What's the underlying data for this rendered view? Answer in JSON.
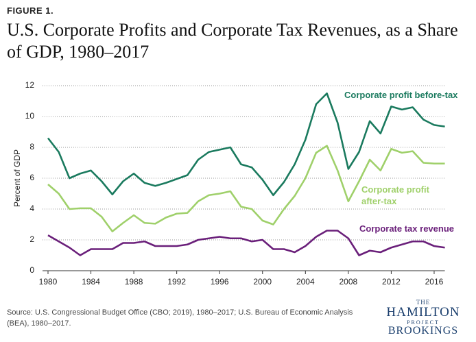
{
  "chart_data": {
    "type": "line",
    "figure_label": "FIGURE 1.",
    "title": "U.S. Corporate Profits and Corporate Tax Revenues, as a Share of GDP, 1980–2017",
    "y_label": "Percent of GDP",
    "source": "Source: U.S. Congressional Budget Office (CBO; 2019), 1980–2017; U.S. Bureau of Economic Analysis (BEA), 1980–2017.",
    "logo": [
      "THE",
      "HAMILTON",
      "PROJECT",
      "BROOKINGS"
    ],
    "x": [
      1980,
      1981,
      1982,
      1983,
      1984,
      1985,
      1986,
      1987,
      1988,
      1989,
      1990,
      1991,
      1992,
      1993,
      1994,
      1995,
      1996,
      1997,
      1998,
      1999,
      2000,
      2001,
      2002,
      2003,
      2004,
      2005,
      2006,
      2007,
      2008,
      2009,
      2010,
      2011,
      2012,
      2013,
      2014,
      2015,
      2016,
      2017
    ],
    "xlim": [
      1980,
      2017
    ],
    "xticks": [
      1980,
      1984,
      1988,
      1992,
      1996,
      2000,
      2004,
      2008,
      2012,
      2016
    ],
    "ylim": [
      0,
      12
    ],
    "yticks": [
      0,
      2,
      4,
      6,
      8,
      10,
      12
    ],
    "grid": true,
    "series": [
      {
        "name": "Corporate profit before-tax",
        "color": "#1a7a5e",
        "values": [
          8.6,
          7.7,
          6.0,
          6.3,
          6.5,
          5.8,
          4.95,
          5.8,
          6.3,
          5.7,
          5.5,
          5.7,
          5.95,
          6.2,
          7.2,
          7.7,
          7.85,
          8.0,
          6.9,
          6.7,
          5.9,
          4.9,
          5.75,
          6.9,
          8.5,
          10.8,
          11.5,
          9.6,
          6.6,
          7.7,
          9.7,
          8.9,
          10.65,
          10.45,
          10.6,
          9.8,
          9.45,
          9.35
        ]
      },
      {
        "name": "Corporate profit after-tax",
        "color": "#9fd06a",
        "values": [
          5.6,
          5.0,
          4.0,
          4.05,
          4.05,
          3.5,
          2.55,
          3.1,
          3.6,
          3.1,
          3.05,
          3.45,
          3.7,
          3.75,
          4.5,
          4.9,
          5.0,
          5.15,
          4.15,
          4.0,
          3.25,
          3.0,
          4.0,
          4.85,
          6.0,
          7.65,
          8.1,
          6.5,
          4.5,
          5.8,
          7.2,
          6.5,
          7.9,
          7.65,
          7.75,
          7.0,
          6.95,
          6.95
        ]
      },
      {
        "name": "Corporate tax revenue",
        "color": "#6a1f7a",
        "values": [
          2.3,
          1.9,
          1.5,
          1.0,
          1.4,
          1.4,
          1.4,
          1.8,
          1.8,
          1.9,
          1.6,
          1.6,
          1.6,
          1.7,
          2.0,
          2.1,
          2.2,
          2.1,
          2.1,
          1.9,
          2.0,
          1.4,
          1.4,
          1.2,
          1.6,
          2.2,
          2.6,
          2.6,
          2.1,
          1.0,
          1.3,
          1.2,
          1.5,
          1.7,
          1.9,
          1.9,
          1.6,
          1.5
        ]
      }
    ]
  }
}
